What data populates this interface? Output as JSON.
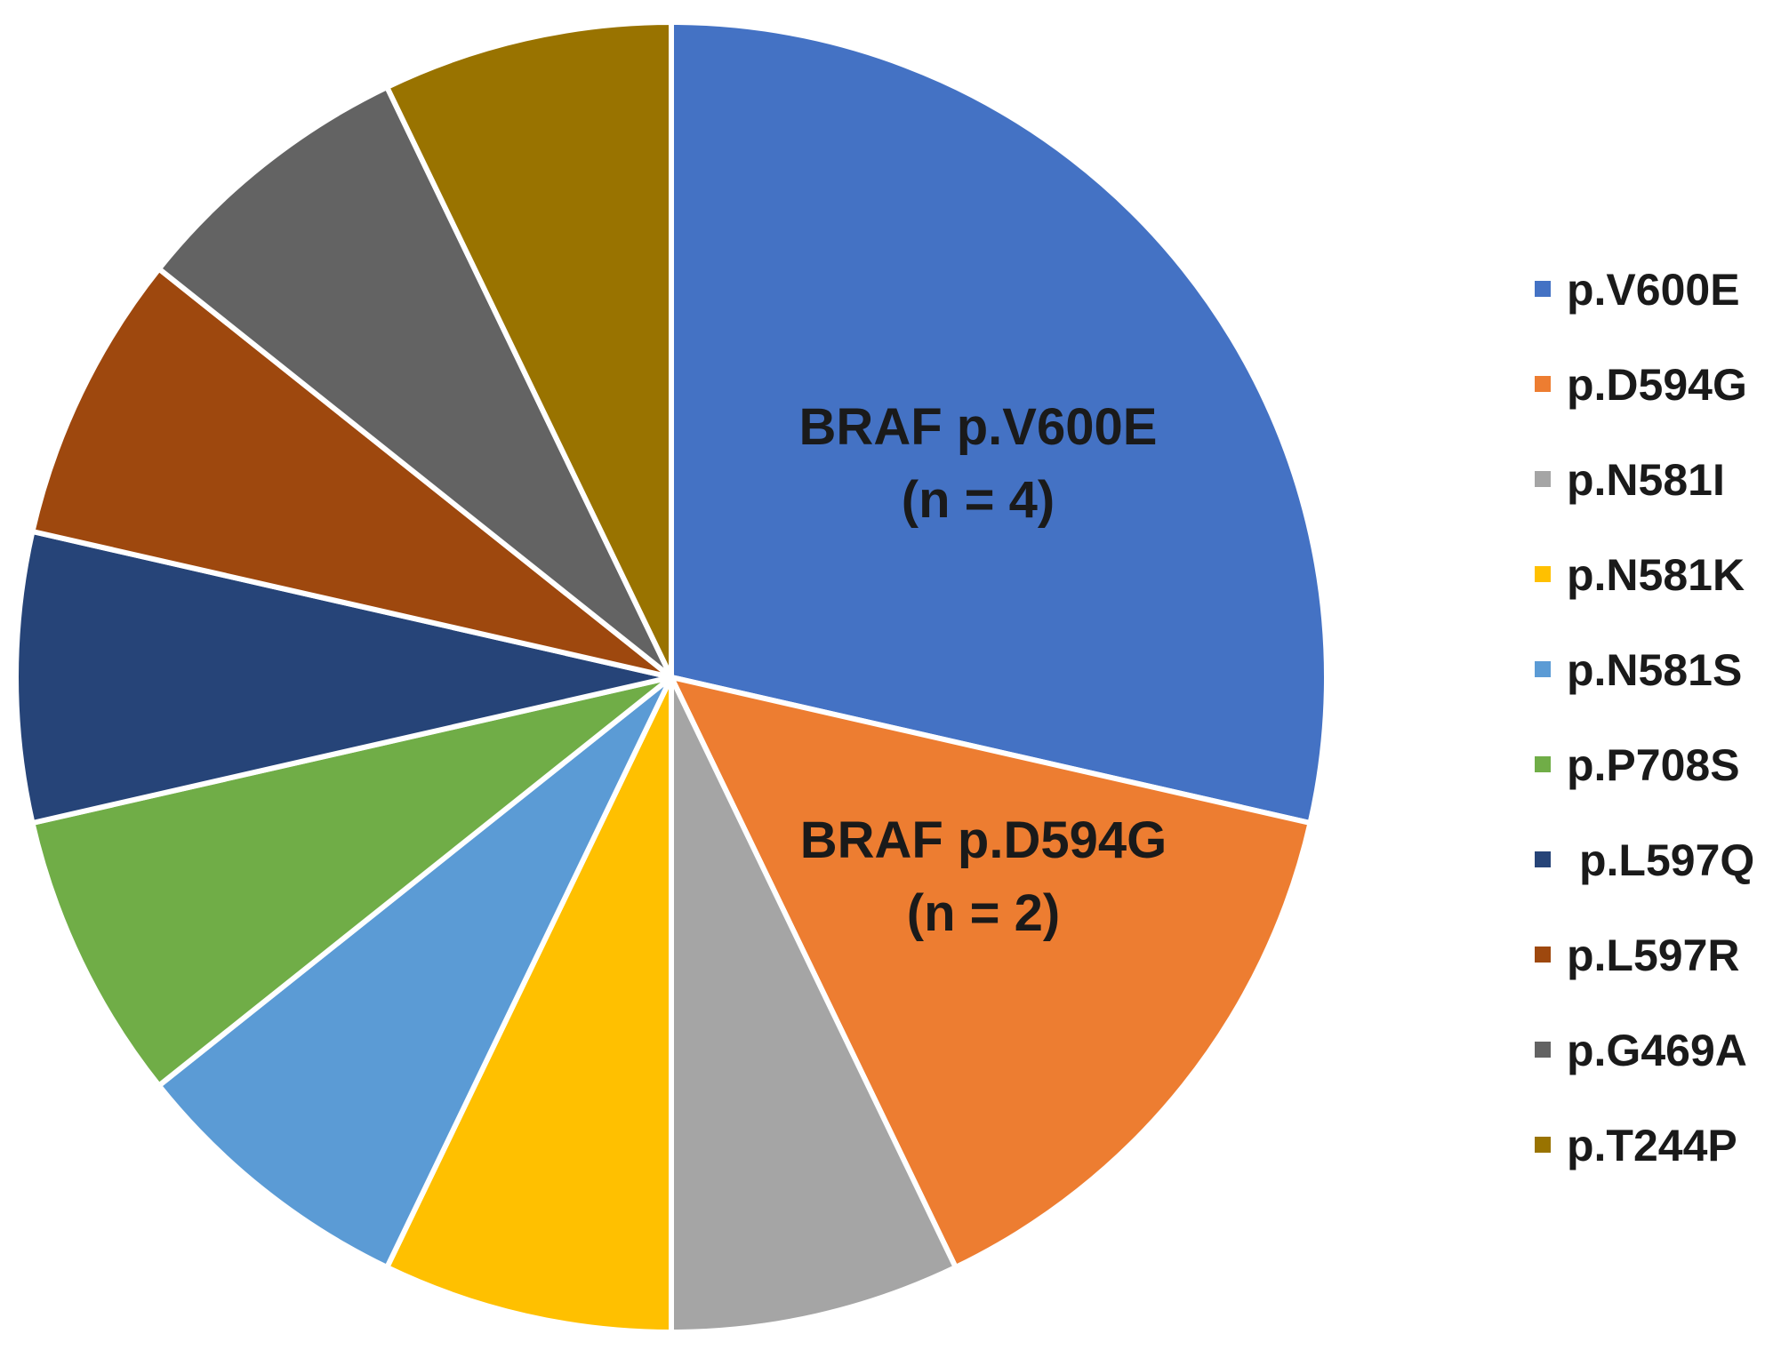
{
  "chart_data": {
    "type": "pie",
    "slices": [
      {
        "name": "p.V600E",
        "value": 4,
        "color": "#4472C4",
        "label_lines": [
          "BRAF p.V600E",
          "(n = 4)"
        ]
      },
      {
        "name": "p.D594G",
        "value": 2,
        "color": "#ED7D31",
        "label_lines": [
          "BRAF p.D594G",
          "(n = 2)"
        ]
      },
      {
        "name": "p.N581I",
        "value": 1,
        "color": "#A5A5A5"
      },
      {
        "name": "p.N581K",
        "value": 1,
        "color": "#FFC000"
      },
      {
        "name": "p.N581S",
        "value": 1,
        "color": "#5B9BD5"
      },
      {
        "name": "p.P708S",
        "value": 1,
        "color": "#70AD47"
      },
      {
        "name": "p.L597Q",
        "value": 1,
        "color": "#264478"
      },
      {
        "name": "p.L597R",
        "value": 1,
        "color": "#9E480E"
      },
      {
        "name": "p.G469A",
        "value": 1,
        "color": "#636363"
      },
      {
        "name": "p.T244P",
        "value": 1,
        "color": "#997300"
      }
    ],
    "start_angle": "12 o'clock",
    "direction": "clockwise",
    "legend_position": "right"
  }
}
